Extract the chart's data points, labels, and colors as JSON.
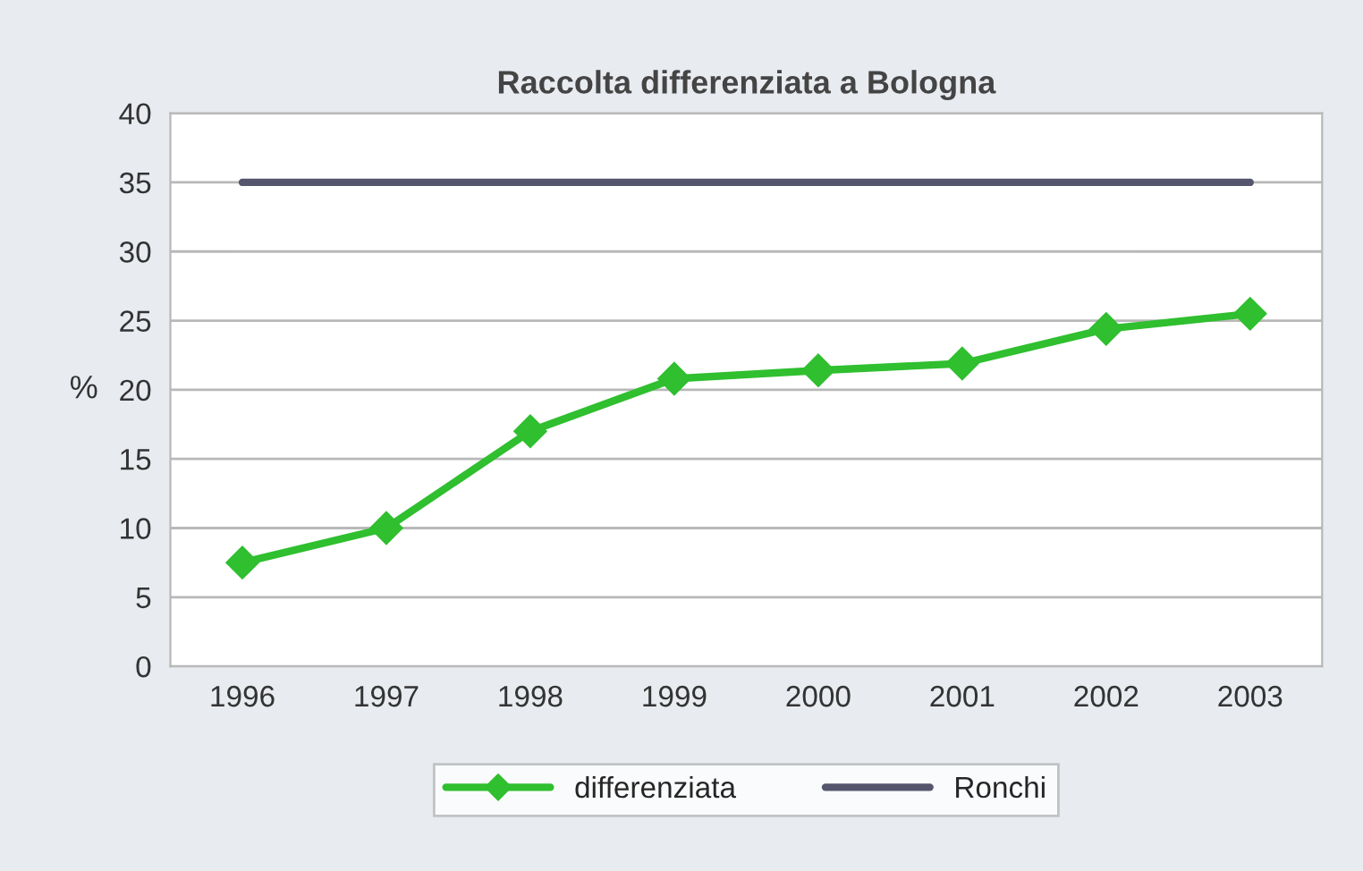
{
  "chart_data": {
    "type": "line",
    "title": "Raccolta differenziata a Bologna",
    "ylabel": "%",
    "categories": [
      "1996",
      "1997",
      "1998",
      "1999",
      "2000",
      "2001",
      "2002",
      "2003"
    ],
    "series": [
      {
        "name": "differenziata",
        "color": "#2fbf2f",
        "marker": "diamond",
        "values": [
          7.5,
          10,
          17,
          20.8,
          21.4,
          21.9,
          24.4,
          25.5
        ]
      },
      {
        "name": "Ronchi",
        "color": "#55556e",
        "marker": "none",
        "values": [
          35,
          35,
          35,
          35,
          35,
          35,
          35,
          35
        ]
      }
    ],
    "ylim": [
      0,
      40
    ],
    "yticks": [
      0,
      5,
      10,
      15,
      20,
      25,
      30,
      35,
      40
    ],
    "grid": "y",
    "legend": "bottom"
  }
}
